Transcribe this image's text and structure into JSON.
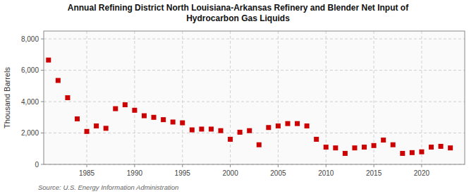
{
  "chart_data": {
    "type": "scatter",
    "title": "Annual Refining District North Louisiana-Arkansas Refinery and Blender Net Input of\nHydrocarbon Gas Liquids",
    "ylabel": "Thousand Barrels",
    "source": "Source: U.S. Energy Information Administration",
    "x": [
      1981,
      1982,
      1983,
      1984,
      1985,
      1986,
      1987,
      1988,
      1989,
      1990,
      1991,
      1992,
      1993,
      1994,
      1995,
      1996,
      1997,
      1998,
      1999,
      2000,
      2001,
      2002,
      2003,
      2004,
      2005,
      2006,
      2007,
      2008,
      2009,
      2010,
      2011,
      2012,
      2013,
      2014,
      2015,
      2016,
      2017,
      2018,
      2019,
      2020,
      2021,
      2022,
      2023
    ],
    "values": [
      6650,
      5350,
      4250,
      2900,
      2100,
      2450,
      2300,
      3550,
      3800,
      3450,
      3100,
      3000,
      2850,
      2700,
      2650,
      2200,
      2250,
      2250,
      2150,
      1600,
      2050,
      2150,
      1250,
      2350,
      2450,
      2600,
      2600,
      2450,
      1600,
      1100,
      1050,
      700,
      1050,
      1100,
      1200,
      1550,
      1250,
      700,
      750,
      800,
      1100,
      1150,
      1050
    ],
    "color": "#cc0000",
    "marker": "square",
    "xlim": [
      1980.5,
      2024.5
    ],
    "xticks": [
      1985,
      1990,
      1995,
      2000,
      2005,
      2010,
      2015,
      2020
    ],
    "ylim": [
      0,
      8500
    ],
    "yticks": [
      0,
      {
        "value": 2000,
        "label": "2,000"
      },
      {
        "value": 4000,
        "label": "4,000"
      },
      {
        "value": 6000,
        "label": "6,000"
      },
      {
        "value": 8000,
        "label": "8,000"
      }
    ],
    "grid": true
  }
}
